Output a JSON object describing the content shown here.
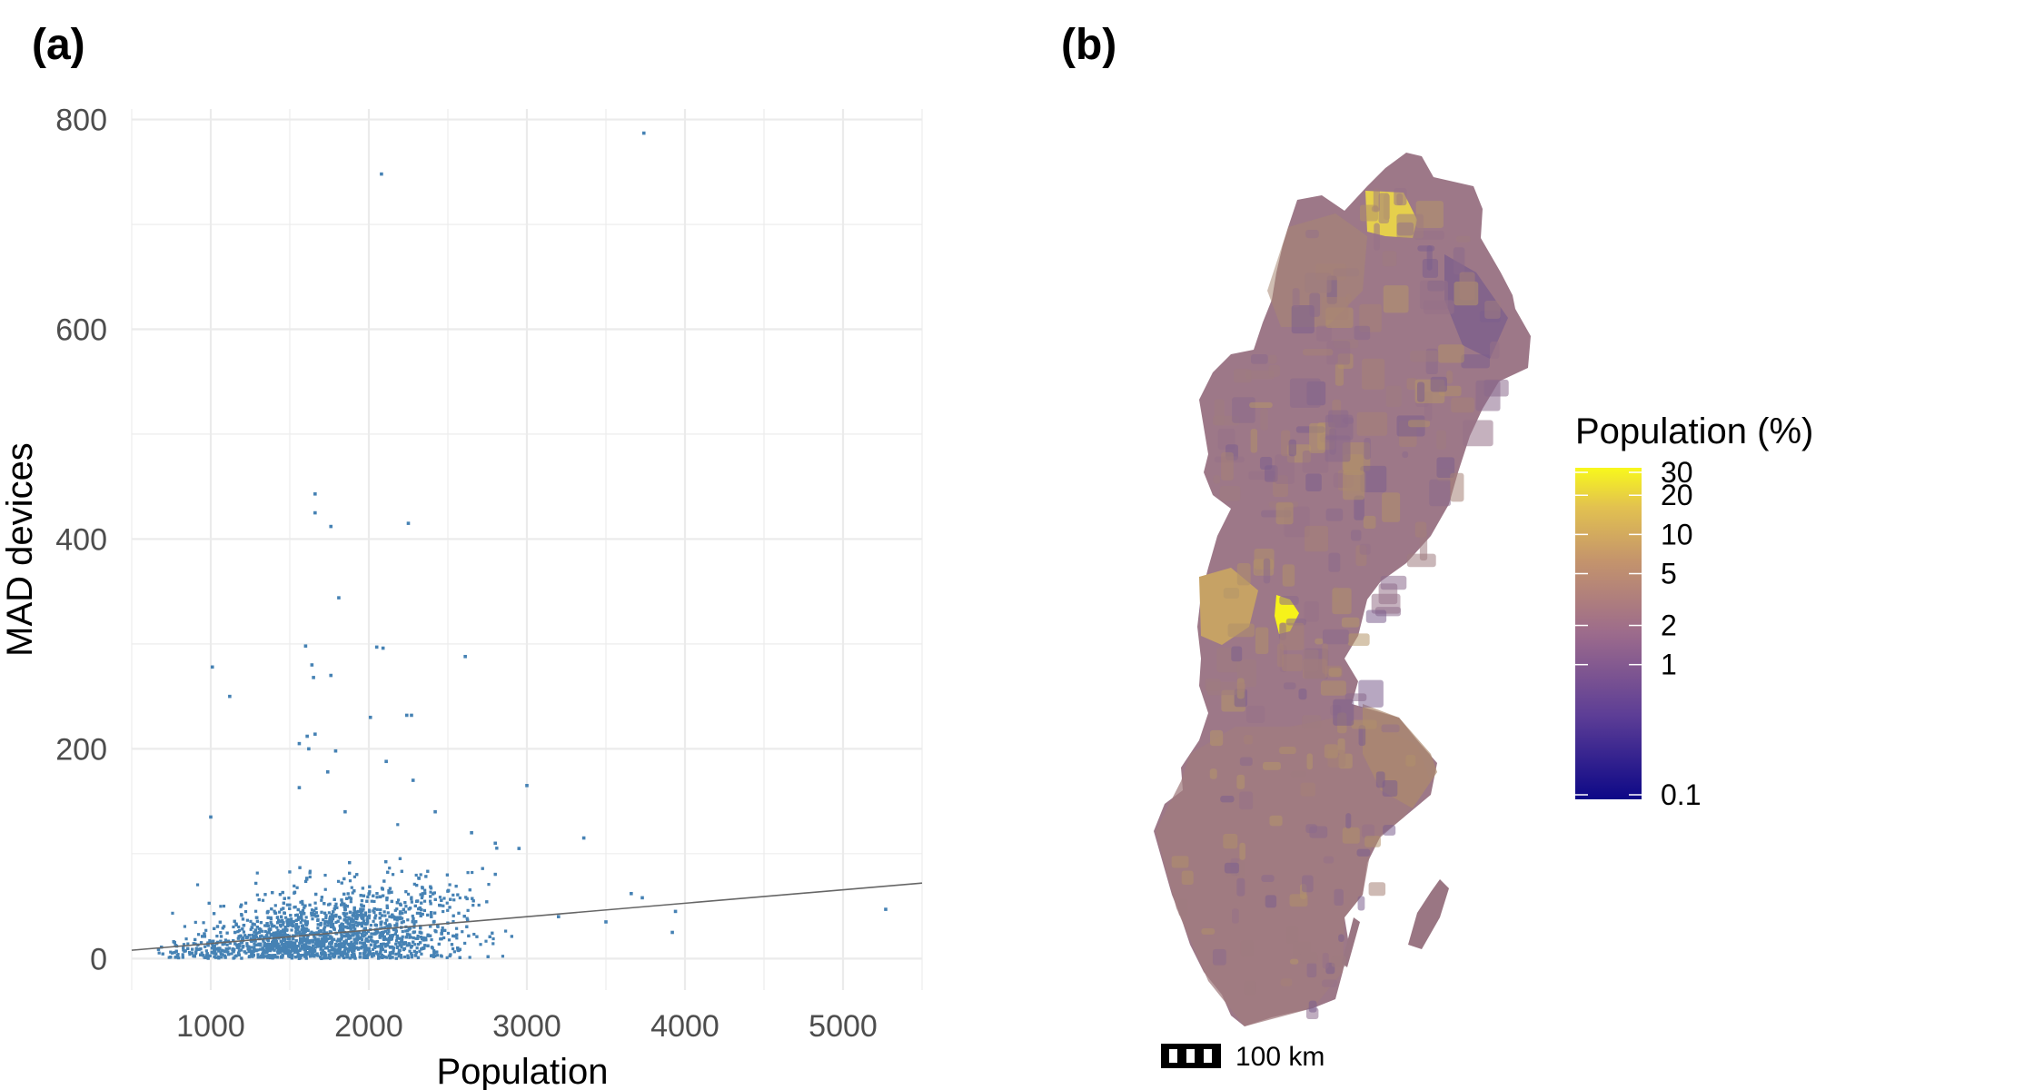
{
  "panels": {
    "a": {
      "label": "(a)"
    },
    "b": {
      "label": "(b)"
    }
  },
  "colors": {
    "points": "#4682b4",
    "trend_line": "#666666",
    "grid": "#ebebeb",
    "map_low": "#0d0887",
    "map_mid": "#9c6b8c",
    "map_high": "#f0f921"
  },
  "chart_data": [
    {
      "type": "scatter",
      "title": "",
      "xlabel": "Population",
      "ylabel": "MAD devices",
      "xlim": [
        500,
        5500
      ],
      "ylim": [
        -30,
        810
      ],
      "x_ticks": [
        1000,
        2000,
        3000,
        4000,
        5000
      ],
      "y_ticks": [
        0,
        200,
        400,
        600,
        800
      ],
      "grid": true,
      "trend_line": {
        "x": [
          500,
          5500
        ],
        "y": [
          8,
          72
        ]
      },
      "series": [
        {
          "points_note_free": true,
          "x": [
            3740,
            2080,
            1660,
            1660,
            1760,
            2250,
            1810,
            1010,
            1600,
            1640,
            2050,
            2090,
            2610,
            1120,
            1650,
            1760,
            1610,
            1660,
            2010,
            2240,
            2270,
            1560,
            1620,
            1560,
            2110,
            1790,
            1740,
            3000,
            1000,
            2280,
            2800,
            3360,
            3730,
            3940,
            5270,
            3500,
            3920,
            3660,
            2650,
            2420,
            1850,
            2950,
            3200
          ],
          "y": [
            787,
            748,
            443,
            425,
            412,
            415,
            344,
            278,
            298,
            280,
            297,
            296,
            288,
            250,
            268,
            270,
            212,
            214,
            230,
            232,
            232,
            205,
            200,
            163,
            188,
            198,
            178,
            165,
            135,
            170,
            110,
            115,
            58,
            45,
            47,
            35,
            25,
            62,
            120,
            140,
            140,
            105,
            40
          ]
        }
      ]
    },
    {
      "type": "heatmap",
      "title": "",
      "legend_title": "Population (%)",
      "legend_ticks": [
        "30",
        "20",
        "10",
        "5",
        "2",
        "1",
        "0.1"
      ],
      "legend_values": [
        30,
        20,
        10,
        5,
        2,
        1,
        0.1
      ],
      "legend_placement": "right",
      "scale": "log",
      "scalebar_label": "100 km"
    }
  ]
}
